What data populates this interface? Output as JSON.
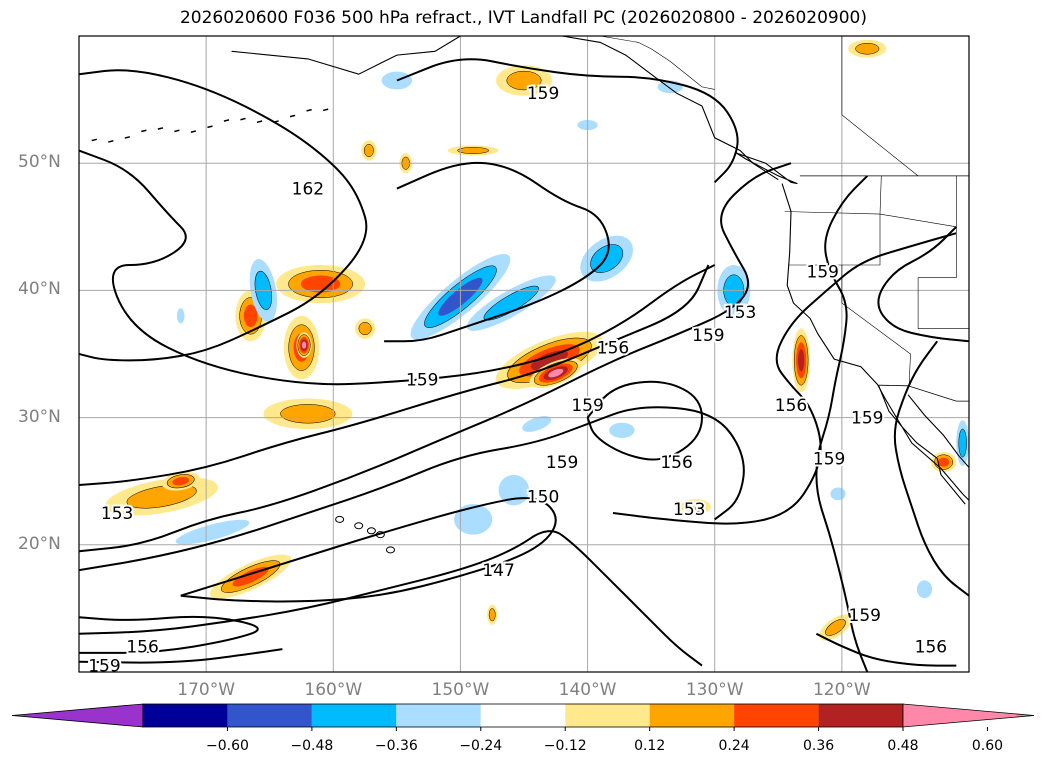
{
  "title": "2026020600 F036 500 hPa refract., IVT Landfall PC (2026020800 - 2026020900)",
  "lat_labels": [
    {
      "text": "50°N",
      "lat": 50
    },
    {
      "text": "40°N",
      "lat": 40
    },
    {
      "text": "30°N",
      "lat": 30
    },
    {
      "text": "20°N",
      "lat": 20
    }
  ],
  "lon_labels": [
    {
      "text": "170°W",
      "lon": -170
    },
    {
      "text": "160°W",
      "lon": -160
    },
    {
      "text": "150°W",
      "lon": -150
    },
    {
      "text": "140°W",
      "lon": -140
    },
    {
      "text": "130°W",
      "lon": -130
    },
    {
      "text": "120°W",
      "lon": -120
    }
  ],
  "map_extent": {
    "lon_min": -180,
    "lon_max": -110,
    "lat_min": 10,
    "lat_max": 60
  },
  "contour_labels": [
    {
      "text": "159",
      "lon": -143.5,
      "lat": 55.5
    },
    {
      "text": "162",
      "lon": -162.0,
      "lat": 48.0
    },
    {
      "text": "159",
      "lon": -153.0,
      "lat": 33.0
    },
    {
      "text": "156",
      "lon": -138.0,
      "lat": 35.5
    },
    {
      "text": "159",
      "lon": -140.0,
      "lat": 31.0
    },
    {
      "text": "159",
      "lon": -130.5,
      "lat": 36.5
    },
    {
      "text": "153",
      "lon": -128.0,
      "lat": 38.3
    },
    {
      "text": "159",
      "lon": -121.5,
      "lat": 41.5
    },
    {
      "text": "156",
      "lon": -124.0,
      "lat": 31.0
    },
    {
      "text": "159",
      "lon": -142.0,
      "lat": 26.5
    },
    {
      "text": "156",
      "lon": -133.0,
      "lat": 26.5
    },
    {
      "text": "150",
      "lon": -143.5,
      "lat": 23.8
    },
    {
      "text": "153",
      "lon": -132.0,
      "lat": 22.8
    },
    {
      "text": "153",
      "lon": -177.0,
      "lat": 22.5
    },
    {
      "text": "159",
      "lon": -121.0,
      "lat": 26.8
    },
    {
      "text": "147",
      "lon": -147.0,
      "lat": 18.0
    },
    {
      "text": "159",
      "lon": -118.2,
      "lat": 14.5
    },
    {
      "text": "156",
      "lon": -113.0,
      "lat": 12.0
    },
    {
      "text": "156",
      "lon": -175.0,
      "lat": 12.0
    },
    {
      "text": "159",
      "lon": -178.0,
      "lat": 10.5
    },
    {
      "text": "159",
      "lon": -118.0,
      "lat": 30.0
    }
  ],
  "colorbar": {
    "colors": [
      "#9933cc",
      "#000099",
      "#3355cc",
      "#00bbff",
      "#aaddff",
      "#ffffff",
      "#ffe98c",
      "#ffa500",
      "#ff4400",
      "#b22222",
      "#ff88aa"
    ],
    "ticks": [
      "−0.60",
      "−0.48",
      "−0.36",
      "−0.24",
      "−0.12",
      "0.12",
      "0.24",
      "0.36",
      "0.48",
      "0.60"
    ]
  },
  "shaded_regions": [
    {
      "lon": -143.0,
      "lat": 34.5,
      "rx": 4.5,
      "ry": 1.6,
      "rot": -22,
      "level": 4
    },
    {
      "lon": -142.5,
      "lat": 33.5,
      "rx": 2.2,
      "ry": 0.9,
      "rot": -22,
      "level": 5
    },
    {
      "lon": -150.0,
      "lat": 39.5,
      "rx": 5.0,
      "ry": 1.3,
      "rot": -40,
      "level": -3
    },
    {
      "lon": -146.0,
      "lat": 39.0,
      "rx": 4.0,
      "ry": 1.0,
      "rot": -30,
      "level": -2
    },
    {
      "lon": -173.5,
      "lat": 23.8,
      "rx": 4.5,
      "ry": 1.3,
      "rot": -10,
      "level": 2
    },
    {
      "lon": -172.0,
      "lat": 25.0,
      "rx": 1.5,
      "ry": 0.7,
      "rot": -10,
      "level": 3
    },
    {
      "lon": -166.5,
      "lat": 17.5,
      "rx": 3.5,
      "ry": 1.0,
      "rot": -25,
      "level": 3
    },
    {
      "lon": -162.5,
      "lat": 35.5,
      "rx": 1.4,
      "ry": 2.5,
      "rot": 0,
      "level": 3
    },
    {
      "lon": -162.3,
      "lat": 35.7,
      "rx": 0.6,
      "ry": 1.0,
      "rot": 0,
      "level": 5
    },
    {
      "lon": -161.0,
      "lat": 40.5,
      "rx": 3.5,
      "ry": 1.5,
      "rot": 0,
      "level": 3
    },
    {
      "lon": -166.5,
      "lat": 38.0,
      "rx": 1.2,
      "ry": 2.0,
      "rot": 0,
      "level": 3
    },
    {
      "lon": -165.5,
      "lat": 40.0,
      "rx": 1.0,
      "ry": 2.5,
      "rot": -10,
      "level": -2
    },
    {
      "lon": -162.0,
      "lat": 30.3,
      "rx": 3.5,
      "ry": 1.2,
      "rot": 0,
      "level": 2
    },
    {
      "lon": -145.0,
      "lat": 56.5,
      "rx": 2.2,
      "ry": 1.2,
      "rot": 0,
      "level": 2
    },
    {
      "lon": -118.0,
      "lat": 59.0,
      "rx": 1.5,
      "ry": 0.7,
      "rot": 0,
      "level": 2
    },
    {
      "lon": -138.5,
      "lat": 42.5,
      "rx": 2.3,
      "ry": 1.5,
      "rot": -35,
      "level": -2
    },
    {
      "lon": -128.5,
      "lat": 40.0,
      "rx": 1.3,
      "ry": 2.0,
      "rot": 0,
      "level": -2
    },
    {
      "lon": -123.2,
      "lat": 34.5,
      "rx": 0.7,
      "ry": 2.5,
      "rot": 0,
      "level": 4
    },
    {
      "lon": -145.8,
      "lat": 24.3,
      "rx": 1.2,
      "ry": 1.2,
      "rot": 0,
      "level": -1
    },
    {
      "lon": -149.0,
      "lat": 22.0,
      "rx": 1.5,
      "ry": 1.2,
      "rot": 0,
      "level": -1
    },
    {
      "lon": -169.5,
      "lat": 21.0,
      "rx": 3.0,
      "ry": 0.6,
      "rot": -15,
      "level": -1
    },
    {
      "lon": -131.5,
      "lat": 23.0,
      "rx": 1.2,
      "ry": 0.6,
      "rot": 0,
      "level": 2
    },
    {
      "lon": -120.5,
      "lat": 13.5,
      "rx": 1.5,
      "ry": 0.7,
      "rot": -35,
      "level": 2
    },
    {
      "lon": -112.0,
      "lat": 26.5,
      "rx": 1.0,
      "ry": 0.8,
      "rot": 0,
      "level": 3
    },
    {
      "lon": -137.3,
      "lat": 29.0,
      "rx": 1.0,
      "ry": 0.6,
      "rot": 0,
      "level": -1
    },
    {
      "lon": -157.5,
      "lat": 37.0,
      "rx": 0.8,
      "ry": 0.8,
      "rot": 0,
      "level": 2
    },
    {
      "lon": -149.0,
      "lat": 51.0,
      "rx": 2.0,
      "ry": 0.4,
      "rot": 0,
      "level": 2
    },
    {
      "lon": -157.2,
      "lat": 51.0,
      "rx": 0.6,
      "ry": 0.8,
      "rot": 0,
      "level": 2
    },
    {
      "lon": -154.3,
      "lat": 50.0,
      "rx": 0.5,
      "ry": 0.8,
      "rot": 0,
      "level": 2
    },
    {
      "lon": -155.0,
      "lat": 56.5,
      "rx": 1.2,
      "ry": 0.7,
      "rot": 0,
      "level": -1
    },
    {
      "lon": -144.0,
      "lat": 29.5,
      "rx": 1.2,
      "ry": 0.5,
      "rot": -20,
      "level": -1
    },
    {
      "lon": -120.3,
      "lat": 24.0,
      "rx": 0.6,
      "ry": 0.5,
      "rot": 0,
      "level": -1
    },
    {
      "lon": -113.5,
      "lat": 16.5,
      "rx": 0.6,
      "ry": 0.7,
      "rot": 0,
      "level": -1
    },
    {
      "lon": -110.5,
      "lat": 28.0,
      "rx": 0.5,
      "ry": 1.8,
      "rot": 0,
      "level": -2
    },
    {
      "lon": -172.0,
      "lat": 38.0,
      "rx": 0.3,
      "ry": 0.6,
      "rot": 0,
      "level": -1
    },
    {
      "lon": -140.0,
      "lat": 53.0,
      "rx": 0.8,
      "ry": 0.4,
      "rot": 0,
      "level": -1
    },
    {
      "lon": -133.5,
      "lat": 56.0,
      "rx": 1.0,
      "ry": 0.5,
      "rot": 0,
      "level": -1
    },
    {
      "lon": -147.5,
      "lat": 14.5,
      "rx": 0.4,
      "ry": 0.8,
      "rot": 0,
      "level": 2
    }
  ]
}
